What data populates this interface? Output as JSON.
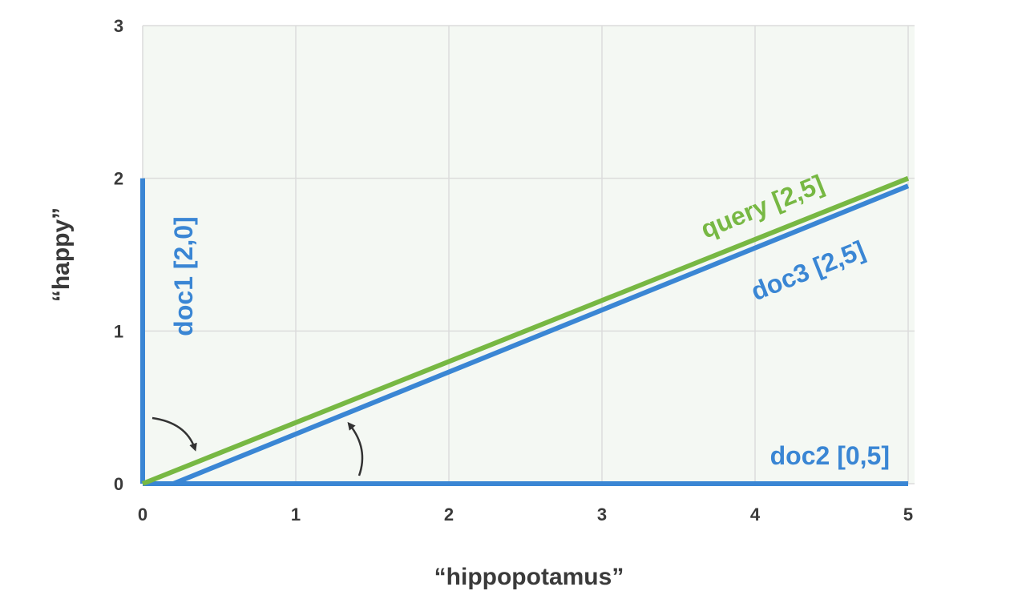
{
  "chart_data": {
    "type": "line",
    "xlabel": "“hippopotamus”",
    "ylabel": "“happy”",
    "xlim": [
      0,
      5
    ],
    "ylim": [
      0,
      3
    ],
    "x_ticks": [
      "0",
      "1",
      "2",
      "3",
      "4",
      "5"
    ],
    "y_ticks": [
      "0",
      "1",
      "2",
      "3"
    ],
    "grid": true,
    "background_color": "#f4f8f3",
    "series": [
      {
        "name": "doc1 [2,0]",
        "color": "#3a86d4",
        "x": [
          0,
          0
        ],
        "y": [
          0,
          2
        ]
      },
      {
        "name": "doc2 [0,5]",
        "color": "#3a86d4",
        "x": [
          0,
          5
        ],
        "y": [
          0,
          0
        ]
      },
      {
        "name": "doc3 [2,5]",
        "color": "#3a86d4",
        "x": [
          0.2,
          5
        ],
        "y": [
          0,
          1.95
        ]
      },
      {
        "name": "query [2,5]",
        "color": "#77b843",
        "x": [
          0,
          5
        ],
        "y": [
          0,
          2
        ]
      }
    ],
    "annotations": [
      "angle-arrow-doc1-query",
      "angle-arrow-doc2-doc3"
    ]
  }
}
